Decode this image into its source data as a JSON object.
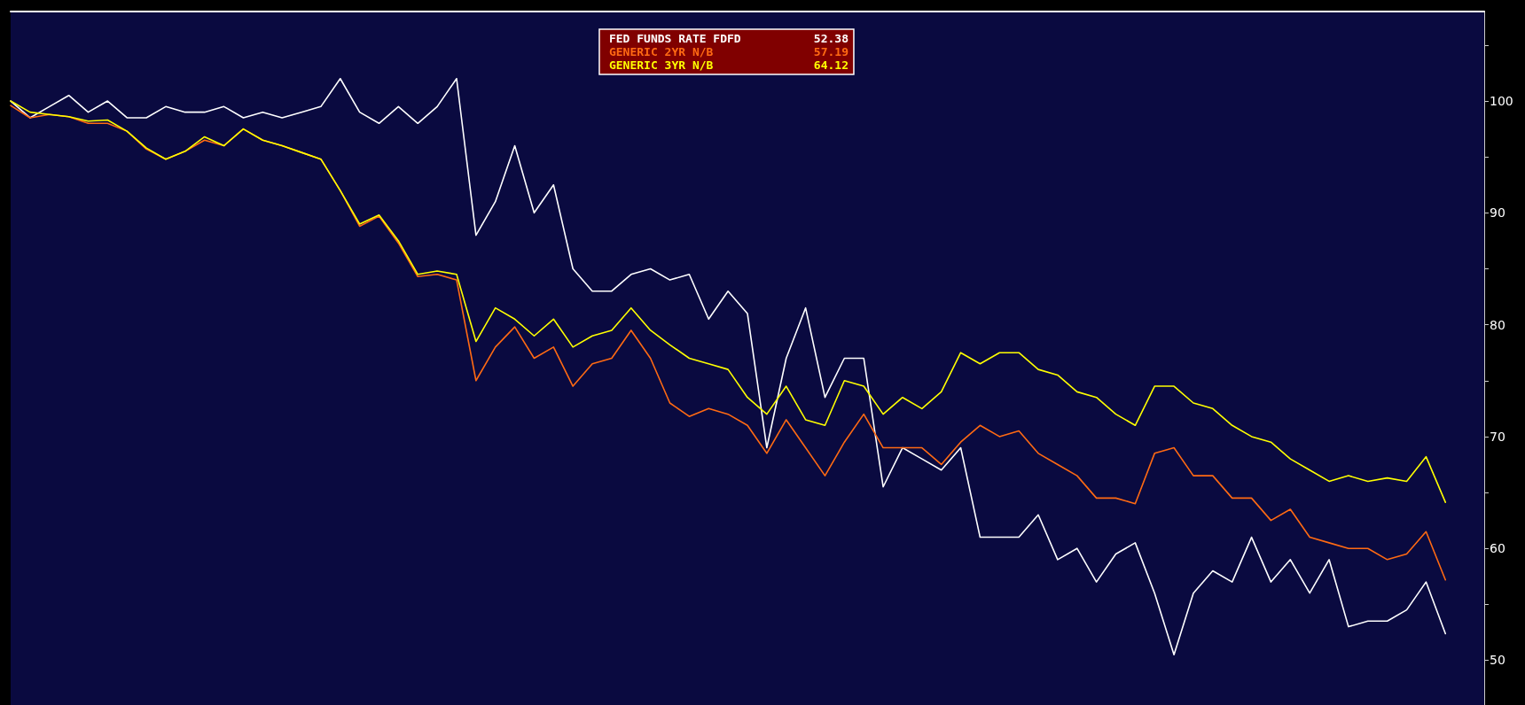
{
  "chart_data": {
    "type": "line",
    "categories": [
      null,
      null,
      null,
      null,
      null,
      null,
      null,
      null,
      null,
      null,
      null,
      null,
      null,
      null,
      null,
      null,
      null,
      null,
      null,
      null,
      null,
      null,
      null,
      null,
      null,
      null,
      null,
      null,
      null,
      null,
      null,
      null,
      null,
      null,
      null,
      null,
      null,
      null,
      null,
      null,
      null,
      null,
      null,
      null,
      null,
      null,
      null,
      null,
      null,
      null,
      null,
      null,
      null,
      null,
      null,
      null,
      null,
      null,
      null,
      null,
      null,
      null,
      null,
      null,
      null,
      null,
      null,
      null,
      null,
      null,
      null,
      null,
      null,
      null,
      null,
      null,
      null
    ],
    "series": [
      {
        "name": "FED FUNDS RATE FDFD",
        "color": "#ffffff",
        "values": [
          100,
          98.5,
          99.5,
          100.5,
          99,
          100,
          98.5,
          98.5,
          99.5,
          99,
          99,
          99.5,
          98.5,
          99,
          98.5,
          99,
          99.5,
          102,
          99,
          98,
          99.5,
          98,
          99.5,
          102,
          88,
          91,
          96,
          90,
          92.5,
          85,
          83,
          83,
          84.5,
          85,
          84,
          84.5,
          80.5,
          83,
          81,
          69,
          77,
          81.5,
          73.5,
          77,
          77,
          65.5,
          69,
          68,
          67,
          69,
          61,
          61,
          61,
          63,
          59,
          60,
          57,
          59.5,
          60.5,
          56,
          50.5,
          56,
          58,
          57,
          61,
          57,
          59,
          56,
          59,
          53,
          53.5,
          53.5,
          54.5,
          57,
          52.38,
          null,
          null
        ]
      },
      {
        "name": "GENERIC 2YR N/B",
        "color": "#ff6a13",
        "values": [
          99.6,
          98.5,
          98.8,
          98.6,
          98,
          98,
          97.3,
          95.7,
          94.8,
          95.5,
          96.5,
          96,
          97.5,
          96.5,
          96,
          95.4,
          94.8,
          92,
          88.8,
          89.7,
          87.3,
          84.3,
          84.5,
          84,
          75,
          78,
          79.8,
          77,
          78,
          74.5,
          76.5,
          77,
          79.5,
          77,
          73,
          71.8,
          72.5,
          72,
          71,
          68.5,
          71.5,
          69,
          66.5,
          69.5,
          72,
          69,
          69,
          69,
          67.5,
          69.5,
          71,
          70,
          70.5,
          68.5,
          67.5,
          66.5,
          64.5,
          64.5,
          64,
          68.5,
          69,
          66.5,
          66.5,
          64.5,
          64.5,
          62.5,
          63.5,
          61,
          60.5,
          60,
          60,
          59,
          59.5,
          61.5,
          57.19,
          null,
          null
        ]
      },
      {
        "name": "GENERIC 3YR N/B",
        "color": "#ffff00",
        "values": [
          100,
          99,
          98.8,
          98.6,
          98.2,
          98.3,
          97.3,
          95.8,
          94.8,
          95.5,
          96.8,
          96,
          97.5,
          96.5,
          96,
          95.4,
          94.8,
          92,
          89,
          89.8,
          87.5,
          84.5,
          84.8,
          84.5,
          78.5,
          81.5,
          80.5,
          79,
          80.5,
          78,
          79,
          79.5,
          81.5,
          79.5,
          78.2,
          77,
          76.5,
          76,
          73.5,
          72,
          74.5,
          71.5,
          71,
          75,
          74.5,
          72,
          73.5,
          72.5,
          74,
          77.5,
          76.5,
          77.5,
          77.5,
          76,
          75.5,
          74,
          73.5,
          72,
          71,
          74.5,
          74.5,
          73,
          72.5,
          71,
          70,
          69.5,
          68,
          67,
          66,
          66.5,
          66,
          66.3,
          66,
          68.2,
          64.12,
          null,
          null
        ]
      }
    ],
    "ylim": [
      46,
      108
    ],
    "yticks": [
      50,
      {
        "value": 55,
        "label": null
      },
      60,
      {
        "value": 65,
        "label": null
      },
      70,
      {
        "value": 75,
        "label": null
      },
      80,
      {
        "value": 85,
        "label": null
      },
      90,
      {
        "value": 95,
        "label": null
      },
      100,
      {
        "value": 105,
        "label": null
      }
    ],
    "annotations": [
      "52.38",
      "57.19",
      "64.12"
    ],
    "tick_labels": "y",
    "legend": "top",
    "grid": false,
    "marker": "none",
    "line_style": "solid"
  }
}
